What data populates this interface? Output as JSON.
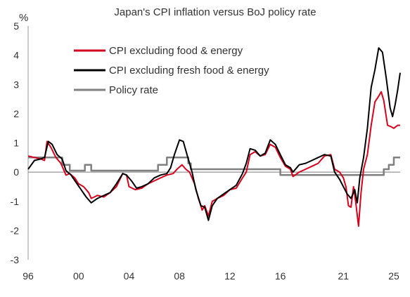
{
  "chart_data": {
    "type": "line",
    "title": "Japan's CPI inflation versus BoJ policy rate",
    "ylabel": "%",
    "xlabel": "",
    "xlim": [
      1996,
      2025.5
    ],
    "ylim": [
      -3,
      5
    ],
    "x_ticks": [
      1996,
      2000,
      2004,
      2008,
      2012,
      2016,
      2021,
      2025
    ],
    "x_tick_labels": [
      "96",
      "00",
      "04",
      "08",
      "12",
      "16",
      "21",
      "25"
    ],
    "y_ticks": [
      -3,
      -2,
      -1,
      0,
      1,
      2,
      3,
      4,
      5
    ],
    "y_tick_labels": [
      "-3",
      "-2",
      "-1",
      "0",
      "1",
      "2",
      "3",
      "4",
      "5"
    ],
    "zero_line": true,
    "grid": false,
    "legend_position": "top-left",
    "series": [
      {
        "name": "CPI excluding food & energy",
        "color": "#d7001c",
        "points": [
          [
            1996.0,
            0.55
          ],
          [
            1996.5,
            0.5
          ],
          [
            1997.0,
            0.45
          ],
          [
            1997.3,
            0.4
          ],
          [
            1997.5,
            1.05
          ],
          [
            1997.8,
            0.85
          ],
          [
            1998.2,
            0.5
          ],
          [
            1998.6,
            0.3
          ],
          [
            1999.0,
            -0.1
          ],
          [
            1999.3,
            -0.05
          ],
          [
            1999.7,
            -0.2
          ],
          [
            2000.0,
            -0.4
          ],
          [
            2000.4,
            -0.5
          ],
          [
            2000.8,
            -0.7
          ],
          [
            2001.0,
            -0.9
          ],
          [
            2001.5,
            -0.8
          ],
          [
            2002.0,
            -0.85
          ],
          [
            2002.5,
            -0.7
          ],
          [
            2003.0,
            -0.5
          ],
          [
            2003.5,
            -0.05
          ],
          [
            2003.8,
            -0.1
          ],
          [
            2004.0,
            -0.5
          ],
          [
            2004.5,
            -0.6
          ],
          [
            2005.0,
            -0.55
          ],
          [
            2005.5,
            -0.4
          ],
          [
            2006.0,
            -0.3
          ],
          [
            2006.5,
            -0.2
          ],
          [
            2007.0,
            -0.1
          ],
          [
            2007.5,
            -0.05
          ],
          [
            2007.8,
            0.1
          ],
          [
            2008.2,
            0.25
          ],
          [
            2008.5,
            0.1
          ],
          [
            2008.8,
            0.0
          ],
          [
            2009.2,
            -0.4
          ],
          [
            2009.5,
            -0.9
          ],
          [
            2009.8,
            -1.3
          ],
          [
            2010.0,
            -1.15
          ],
          [
            2010.3,
            -1.5
          ],
          [
            2010.6,
            -1.0
          ],
          [
            2011.0,
            -0.9
          ],
          [
            2011.5,
            -0.8
          ],
          [
            2012.0,
            -0.6
          ],
          [
            2012.5,
            -0.55
          ],
          [
            2013.0,
            -0.2
          ],
          [
            2013.3,
            0.0
          ],
          [
            2013.6,
            0.6
          ],
          [
            2014.0,
            0.7
          ],
          [
            2014.4,
            0.55
          ],
          [
            2014.8,
            0.6
          ],
          [
            2015.2,
            0.95
          ],
          [
            2015.6,
            0.85
          ],
          [
            2016.0,
            0.5
          ],
          [
            2016.4,
            0.2
          ],
          [
            2016.8,
            0.1
          ],
          [
            2017.0,
            -0.15
          ],
          [
            2017.5,
            0.0
          ],
          [
            2018.0,
            0.1
          ],
          [
            2018.5,
            0.2
          ],
          [
            2019.0,
            0.3
          ],
          [
            2019.5,
            0.55
          ],
          [
            2020.0,
            0.6
          ],
          [
            2020.3,
            0.1
          ],
          [
            2020.7,
            0.0
          ],
          [
            2021.0,
            -0.2
          ],
          [
            2021.2,
            -0.5
          ],
          [
            2021.4,
            -1.15
          ],
          [
            2021.6,
            -1.2
          ],
          [
            2021.8,
            -0.5
          ],
          [
            2022.0,
            -1.1
          ],
          [
            2022.2,
            -1.85
          ],
          [
            2022.4,
            -0.7
          ],
          [
            2022.6,
            0.1
          ],
          [
            2022.9,
            0.6
          ],
          [
            2023.2,
            1.6
          ],
          [
            2023.5,
            2.4
          ],
          [
            2023.8,
            2.6
          ],
          [
            2024.0,
            2.75
          ],
          [
            2024.2,
            2.45
          ],
          [
            2024.5,
            1.6
          ],
          [
            2024.8,
            1.55
          ],
          [
            2025.0,
            1.5
          ],
          [
            2025.3,
            1.6
          ],
          [
            2025.5,
            1.6
          ]
        ]
      },
      {
        "name": "CPI excluding fresh food & energy",
        "color": "#000000",
        "points": [
          [
            1996.0,
            0.1
          ],
          [
            1996.5,
            0.4
          ],
          [
            1997.0,
            0.45
          ],
          [
            1997.3,
            0.5
          ],
          [
            1997.6,
            1.05
          ],
          [
            1997.9,
            0.95
          ],
          [
            1998.3,
            0.6
          ],
          [
            1998.7,
            0.45
          ],
          [
            1999.0,
            0.05
          ],
          [
            1999.4,
            -0.1
          ],
          [
            1999.8,
            -0.35
          ],
          [
            2000.2,
            -0.6
          ],
          [
            2000.6,
            -0.85
          ],
          [
            2001.0,
            -1.05
          ],
          [
            2001.5,
            -0.9
          ],
          [
            2002.0,
            -0.8
          ],
          [
            2002.5,
            -0.7
          ],
          [
            2003.0,
            -0.4
          ],
          [
            2003.5,
            -0.05
          ],
          [
            2003.8,
            -0.1
          ],
          [
            2004.2,
            -0.3
          ],
          [
            2004.6,
            -0.55
          ],
          [
            2005.0,
            -0.5
          ],
          [
            2005.5,
            -0.4
          ],
          [
            2006.0,
            -0.2
          ],
          [
            2006.5,
            -0.1
          ],
          [
            2007.0,
            -0.05
          ],
          [
            2007.3,
            0.15
          ],
          [
            2007.6,
            0.6
          ],
          [
            2008.0,
            1.1
          ],
          [
            2008.3,
            1.05
          ],
          [
            2008.6,
            0.6
          ],
          [
            2009.0,
            0.0
          ],
          [
            2009.3,
            -0.6
          ],
          [
            2009.7,
            -1.15
          ],
          [
            2010.0,
            -1.2
          ],
          [
            2010.3,
            -1.65
          ],
          [
            2010.6,
            -1.15
          ],
          [
            2011.0,
            -0.9
          ],
          [
            2011.5,
            -0.75
          ],
          [
            2012.0,
            -0.6
          ],
          [
            2012.5,
            -0.45
          ],
          [
            2013.0,
            -0.05
          ],
          [
            2013.3,
            0.3
          ],
          [
            2013.6,
            0.8
          ],
          [
            2014.0,
            0.75
          ],
          [
            2014.4,
            0.55
          ],
          [
            2014.8,
            0.65
          ],
          [
            2015.2,
            1.1
          ],
          [
            2015.6,
            0.95
          ],
          [
            2016.0,
            0.6
          ],
          [
            2016.4,
            0.25
          ],
          [
            2016.8,
            0.15
          ],
          [
            2017.0,
            0.0
          ],
          [
            2017.5,
            0.25
          ],
          [
            2018.0,
            0.3
          ],
          [
            2018.5,
            0.4
          ],
          [
            2019.0,
            0.5
          ],
          [
            2019.5,
            0.6
          ],
          [
            2020.0,
            0.55
          ],
          [
            2020.3,
            0.0
          ],
          [
            2020.7,
            -0.25
          ],
          [
            2021.0,
            -0.5
          ],
          [
            2021.3,
            -0.75
          ],
          [
            2021.6,
            -0.9
          ],
          [
            2021.9,
            -0.6
          ],
          [
            2022.1,
            -1.05
          ],
          [
            2022.3,
            -0.2
          ],
          [
            2022.6,
            0.5
          ],
          [
            2022.9,
            1.5
          ],
          [
            2023.2,
            2.9
          ],
          [
            2023.5,
            3.5
          ],
          [
            2023.8,
            4.25
          ],
          [
            2024.1,
            4.1
          ],
          [
            2024.4,
            3.2
          ],
          [
            2024.7,
            2.2
          ],
          [
            2024.9,
            1.9
          ],
          [
            2025.1,
            2.3
          ],
          [
            2025.3,
            2.8
          ],
          [
            2025.5,
            3.4
          ]
        ]
      },
      {
        "name": "Policy rate",
        "color": "#808080",
        "points": [
          [
            1996.0,
            0.5
          ],
          [
            1998.7,
            0.5
          ],
          [
            1998.7,
            0.25
          ],
          [
            1999.3,
            0.25
          ],
          [
            1999.3,
            0.05
          ],
          [
            2000.5,
            0.05
          ],
          [
            2000.5,
            0.25
          ],
          [
            2001.0,
            0.25
          ],
          [
            2001.0,
            0.05
          ],
          [
            2006.3,
            0.05
          ],
          [
            2006.3,
            0.25
          ],
          [
            2007.0,
            0.25
          ],
          [
            2007.0,
            0.5
          ],
          [
            2008.7,
            0.5
          ],
          [
            2008.7,
            0.3
          ],
          [
            2008.9,
            0.3
          ],
          [
            2008.9,
            0.1
          ],
          [
            2016.0,
            0.1
          ],
          [
            2016.0,
            -0.1
          ],
          [
            2024.2,
            -0.1
          ],
          [
            2024.2,
            0.1
          ],
          [
            2024.6,
            0.1
          ],
          [
            2024.6,
            0.25
          ],
          [
            2025.0,
            0.25
          ],
          [
            2025.0,
            0.5
          ],
          [
            2025.5,
            0.5
          ]
        ]
      }
    ]
  }
}
